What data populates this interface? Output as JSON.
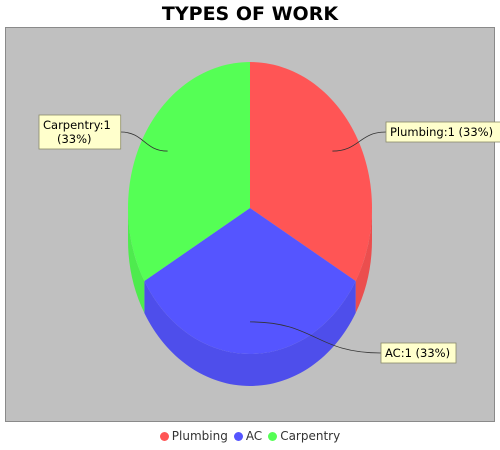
{
  "chart_data": {
    "type": "pie",
    "title": "TYPES OF WORK",
    "slices": [
      {
        "name": "Plumbing",
        "value": 1,
        "percent": 33,
        "color": "#ff5555",
        "label": "Plumbing:1 (33%)"
      },
      {
        "name": "AC",
        "value": 1,
        "percent": 33,
        "color": "#5555ff",
        "label": "AC:1 (33%)"
      },
      {
        "name": "Carpentry",
        "value": 1,
        "percent": 33,
        "color": "#55ff55",
        "label": "Carpentry:1\n(33%)"
      }
    ],
    "legend_position": "bottom",
    "three_d": true,
    "plot_background": "#c0c0c0"
  }
}
